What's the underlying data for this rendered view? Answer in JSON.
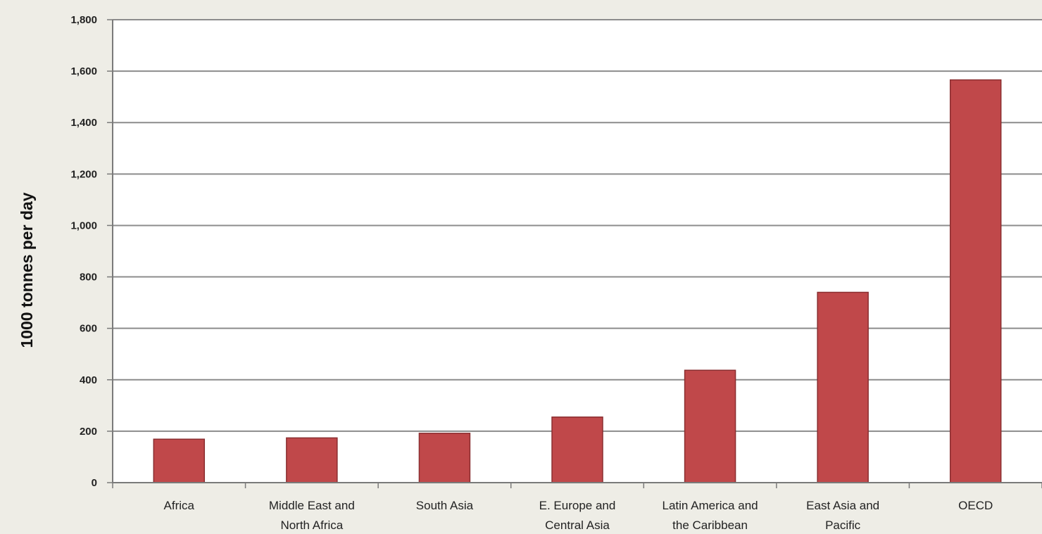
{
  "chart_data": {
    "type": "bar",
    "title": "",
    "xlabel": "",
    "ylabel": "1000 tonnes per day",
    "ylim": [
      0,
      1800
    ],
    "y_ticks": [
      0,
      200,
      400,
      600,
      800,
      1000,
      1200,
      1400,
      1600,
      1800
    ],
    "y_tick_labels": [
      "0",
      "200",
      "400",
      "600",
      "800",
      "1,000",
      "1,200",
      "1,400",
      "1,600",
      "1,800"
    ],
    "categories": [
      [
        "Africa"
      ],
      [
        "Middle East and",
        "North Africa"
      ],
      [
        "South Asia"
      ],
      [
        "E. Europe and",
        "Central Asia"
      ],
      [
        "Latin America and",
        "the Caribbean"
      ],
      [
        "East Asia and",
        "Pacific"
      ],
      [
        "OECD"
      ]
    ],
    "values": [
      169,
      174,
      192,
      255,
      437,
      740,
      1566
    ],
    "grid": true,
    "legend": false,
    "colors": {
      "bar_fill": "#c0484a",
      "bar_stroke": "#8a2e30",
      "plot_bg": "#ffffff",
      "page_bg": "#eeede6",
      "gridline": "#8c8c8c",
      "axis": "#7a7a7a"
    }
  }
}
